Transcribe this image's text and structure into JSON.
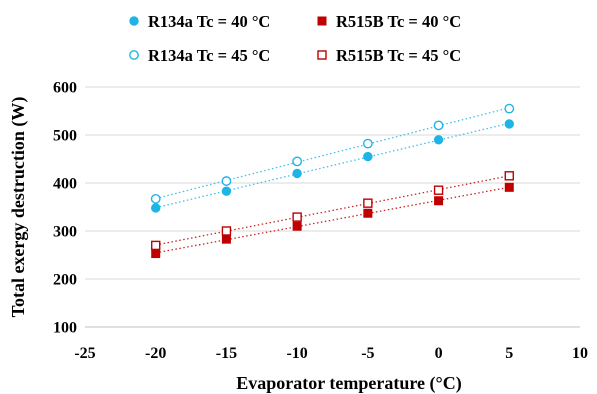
{
  "chart_data": {
    "type": "scatter",
    "title": "",
    "xlabel": "Evaporator temperature (°C)",
    "ylabel": "Total exergy destruction (W)",
    "xlim": [
      -25,
      10
    ],
    "ylim": [
      100,
      600
    ],
    "xticks": [
      -25,
      -20,
      -15,
      -10,
      -5,
      0,
      5,
      10
    ],
    "yticks": [
      100,
      200,
      300,
      400,
      500,
      600
    ],
    "xtick_labels": [
      "-25",
      "-20",
      "-15",
      "-10",
      "-5",
      "0",
      "5",
      "10"
    ],
    "ytick_labels": [
      "100",
      "200",
      "300",
      "400",
      "500",
      "600"
    ],
    "grid": "horizontal",
    "legend_position": "top",
    "trendlines": "linear, dotted",
    "series": [
      {
        "name": "R134a Tc = 40 °C",
        "marker": "filled-circle",
        "color": "#1fb4e6",
        "x": [
          -20,
          -15,
          -10,
          -5,
          0,
          5
        ],
        "y": [
          348,
          383,
          420,
          455,
          490,
          523
        ]
      },
      {
        "name": "R515B Tc = 40 °C",
        "marker": "filled-square",
        "color": "#c00000",
        "x": [
          -20,
          -15,
          -10,
          -5,
          0,
          5
        ],
        "y": [
          253,
          283,
          310,
          337,
          363,
          391
        ]
      },
      {
        "name": "R134a Tc = 45 °C",
        "marker": "open-circle",
        "color": "#1fb4e6",
        "x": [
          -20,
          -15,
          -10,
          -5,
          0,
          5
        ],
        "y": [
          367,
          404,
          445,
          482,
          520,
          555
        ]
      },
      {
        "name": "R515B Tc = 45 °C",
        "marker": "open-square",
        "color": "#c00000",
        "x": [
          -20,
          -15,
          -10,
          -5,
          0,
          5
        ],
        "y": [
          270,
          300,
          329,
          358,
          385,
          415
        ]
      }
    ]
  }
}
